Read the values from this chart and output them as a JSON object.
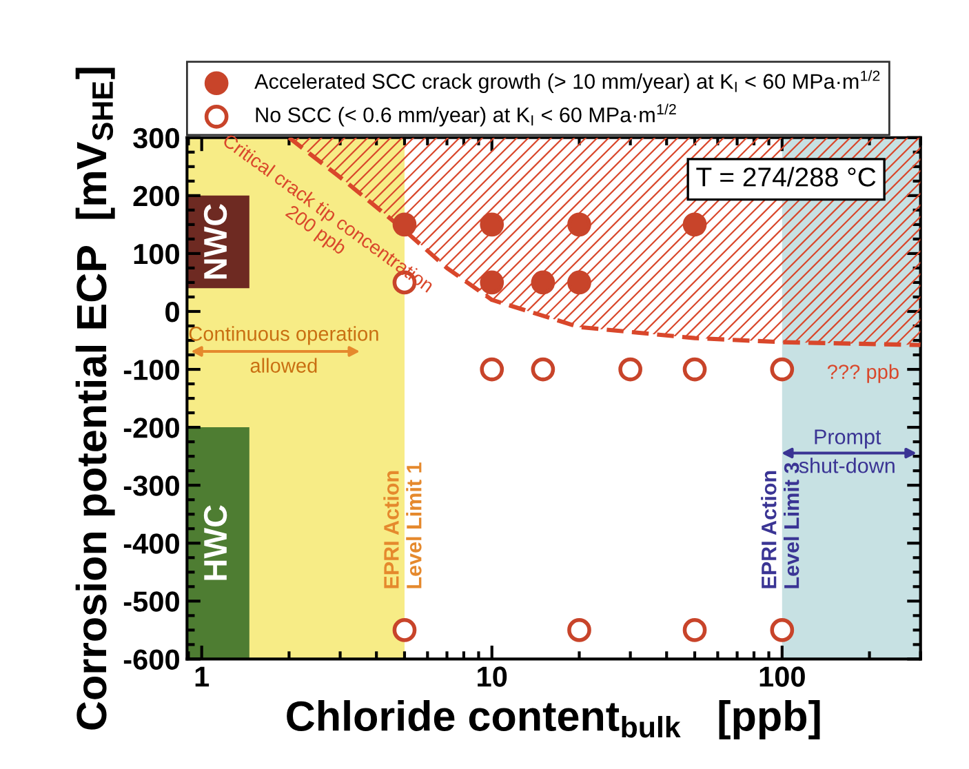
{
  "chart_data": {
    "type": "scatter",
    "xlabel": "Chloride content$_{bulk}$   [ppb]",
    "ylabel": "Corrosion potential ECP  [mV$_{SHE}$]",
    "log": "x",
    "xlim": [
      0.89,
      300
    ],
    "xticks": [
      1,
      10,
      100
    ],
    "ylim": [
      -600,
      300
    ],
    "yticks": [
      -600,
      -500,
      -400,
      -300,
      -200,
      -100,
      0,
      100,
      200,
      300
    ],
    "grid": false,
    "legend": "top",
    "marker": "circle",
    "series": [
      {
        "name": "Accelerated SCC crack growth (> 10 mm/year) at K$_{I}$ < 60 MPa·m$^{1/2}$",
        "color": "#c8442a",
        "x": [
          5,
          10,
          20,
          50,
          10,
          15,
          20
        ],
        "values": [
          150,
          150,
          150,
          150,
          50,
          50,
          50
        ]
      },
      {
        "name": "No SCC (< 0.6 mm/year) at K$_{I}$ < 60 MPa·m$^{1/2}$",
        "color": "#c8442a",
        "x": [
          5,
          10,
          15,
          30,
          50,
          100,
          5,
          20,
          50,
          100
        ],
        "values": [
          50,
          -100,
          -100,
          -100,
          -100,
          -100,
          -550,
          -550,
          -550,
          -550
        ]
      },
      {
        "type": "line",
        "line_style": "dashed",
        "marker": "none",
        "color": "#d9472b",
        "x": [
          2,
          3.1,
          5,
          7,
          10,
          20,
          50,
          100,
          300
        ],
        "values": [
          300,
          226,
          140,
          75,
          20,
          -27,
          -46,
          -53,
          -58
        ]
      }
    ],
    "bands": [
      {
        "axis": "x",
        "from": 0.89,
        "to": 5,
        "color": "#f7ec86",
        "label": "EPRI Action\nLevel Limit 1"
      },
      {
        "axis": "x",
        "from": 100,
        "to": 300,
        "color": "#c7e1e3",
        "label": "EPRI Action\nLevel Limit 3"
      },
      {
        "axis": "y",
        "from": 40,
        "to": 200,
        "color": "#6e2a22",
        "label": "NWC"
      },
      {
        "axis": "y",
        "from": -600,
        "to": -200,
        "color": "#4e7d32",
        "label": "HWC"
      }
    ],
    "annotations": [
      "T = 274/288 °C",
      {
        "text": "Critical crack tip concentration\n200 ppb",
        "x": 3.1,
        "y": 226
      },
      {
        "text": "??? ppb",
        "x": 300,
        "y": -58
      },
      "Continuous operation\nallowed",
      "Prompt\nshut-down"
    ]
  }
}
